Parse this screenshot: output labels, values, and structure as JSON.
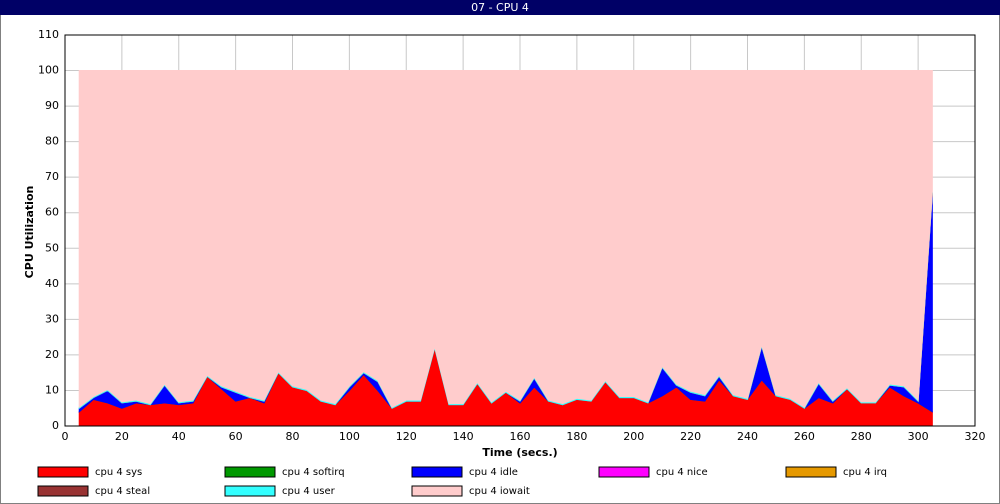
{
  "chart_data": {
    "type": "stacked-area",
    "title": "07 - CPU 4",
    "x_label": "Time (secs.)",
    "y_label": "CPU Utilization",
    "x": [
      5,
      10,
      15,
      20,
      25,
      30,
      35,
      40,
      45,
      50,
      55,
      60,
      65,
      70,
      75,
      80,
      85,
      90,
      95,
      100,
      105,
      110,
      115,
      120,
      125,
      130,
      135,
      140,
      145,
      150,
      155,
      160,
      165,
      170,
      175,
      180,
      185,
      190,
      195,
      200,
      205,
      210,
      215,
      220,
      225,
      230,
      235,
      240,
      245,
      250,
      255,
      260,
      265,
      270,
      275,
      280,
      285,
      290,
      295,
      300,
      305
    ],
    "xlim": [
      0,
      320
    ],
    "xticks": [
      0,
      20,
      40,
      60,
      80,
      100,
      120,
      140,
      160,
      180,
      200,
      220,
      240,
      260,
      280,
      300,
      320
    ],
    "ylim": [
      0,
      110
    ],
    "yticks": [
      0,
      10,
      20,
      30,
      40,
      50,
      60,
      70,
      80,
      90,
      100,
      110
    ],
    "grid": true,
    "series": [
      {
        "name": "cpu 4 sys",
        "color": "#ff0000",
        "values": [
          4,
          7.5,
          6.5,
          5,
          6.5,
          6,
          6.5,
          6,
          6.5,
          14,
          10.5,
          7,
          8,
          6.5,
          15,
          11,
          10,
          7,
          6,
          10,
          14.5,
          10,
          5,
          7,
          7,
          22,
          6,
          6,
          12,
          6.5,
          9.5,
          6.5,
          11,
          7,
          6,
          7.5,
          7,
          12.5,
          8,
          8,
          6.5,
          8.5,
          11,
          7.5,
          7,
          13,
          8.5,
          7.5,
          13,
          8.5,
          7.5,
          5,
          8,
          6.5,
          10.5,
          6.5,
          6.5,
          11,
          8.5,
          6.5,
          4
        ]
      },
      {
        "name": "cpu 4 softirq",
        "color": "#009900",
        "values": [
          0,
          0,
          0,
          0,
          0,
          0,
          0,
          0,
          0,
          0,
          0,
          0,
          0,
          0,
          0,
          0,
          0,
          0,
          0,
          0,
          0,
          0,
          0,
          0,
          0,
          0,
          0,
          0,
          0,
          0,
          0,
          0,
          0,
          0,
          0,
          0,
          0,
          0,
          0,
          0,
          0,
          0,
          0,
          0,
          0,
          0,
          0,
          0,
          0,
          0,
          0,
          0,
          0,
          0,
          0,
          0,
          0,
          0,
          0,
          0,
          0
        ]
      },
      {
        "name": "cpu 4 idle",
        "color": "#0000ff",
        "values": [
          1,
          0.5,
          3.5,
          1.5,
          0.5,
          0,
          5,
          0.5,
          0.5,
          0,
          0.5,
          2.5,
          0,
          0.5,
          0,
          0,
          0,
          0,
          0,
          1,
          0.5,
          2.5,
          0,
          0,
          0,
          0,
          0,
          0,
          0,
          0,
          0,
          0.5,
          2.5,
          0,
          0,
          0,
          0,
          0,
          0,
          0,
          0,
          8,
          0.5,
          2,
          1.5,
          1,
          0,
          0,
          9.5,
          0,
          0,
          0,
          4,
          0.5,
          0,
          0,
          0,
          0.5,
          2.5,
          0.5,
          61.5
        ]
      },
      {
        "name": "cpu 4 nice",
        "color": "#ff00ff",
        "values": [
          0,
          0,
          0,
          0,
          0,
          0,
          0,
          0,
          0,
          0,
          0,
          0,
          0,
          0,
          0,
          0,
          0,
          0,
          0,
          0,
          0,
          0,
          0,
          0,
          0,
          0,
          0,
          0,
          0,
          0,
          0,
          0,
          0,
          0,
          0,
          0,
          0,
          0,
          0,
          0,
          0,
          0,
          0,
          0,
          0,
          0,
          0,
          0,
          0,
          0,
          0,
          0,
          0,
          0,
          0,
          0,
          0,
          0,
          0,
          0,
          0
        ]
      },
      {
        "name": "cpu 4 irq",
        "color": "#e69900",
        "values": [
          0,
          0,
          0,
          0,
          0,
          0,
          0,
          0,
          0,
          0,
          0,
          0,
          0,
          0,
          0,
          0,
          0,
          0,
          0,
          0,
          0,
          0,
          0,
          0,
          0,
          0,
          0,
          0,
          0,
          0,
          0,
          0,
          0,
          0,
          0,
          0,
          0,
          0,
          0,
          0,
          0,
          0,
          0,
          0,
          0,
          0,
          0,
          0,
          0,
          0,
          0,
          0,
          0,
          0,
          0,
          0,
          0,
          0,
          0,
          0,
          0
        ]
      },
      {
        "name": "cpu 4 steal",
        "color": "#993333",
        "values": [
          0,
          0,
          0,
          0,
          0,
          0,
          0,
          0,
          0,
          0,
          0,
          0,
          0,
          0,
          0,
          0,
          0,
          0,
          0,
          0,
          0,
          0,
          0,
          0,
          0,
          0,
          0,
          0,
          0,
          0,
          0,
          0,
          0,
          0,
          0,
          0,
          0,
          0,
          0,
          0,
          0,
          0,
          0,
          0,
          0,
          0,
          0,
          0,
          0,
          0,
          0,
          0,
          0,
          0,
          0,
          0,
          0,
          0,
          0,
          0,
          0
        ]
      },
      {
        "name": "cpu 4 user",
        "color": "#33ffff",
        "values": [
          0.3,
          0.3,
          0.3,
          0.3,
          0.3,
          0.3,
          0.3,
          0.3,
          0.3,
          0.3,
          0.3,
          0.3,
          0.3,
          0.3,
          0.3,
          0.3,
          0.3,
          0.3,
          0.3,
          0.3,
          0.3,
          0.3,
          0.3,
          0.3,
          0.3,
          0.3,
          0.3,
          0.3,
          0.3,
          0.3,
          0.3,
          0.3,
          0.3,
          0.3,
          0.3,
          0.3,
          0.3,
          0.3,
          0.3,
          0.3,
          0.3,
          0.3,
          0.3,
          0.3,
          0.3,
          0.3,
          0.3,
          0.3,
          0.3,
          0.3,
          0.3,
          0.3,
          0.3,
          0.3,
          0.3,
          0.3,
          0.3,
          0.3,
          0.3,
          0.3,
          0.3
        ]
      },
      {
        "name": "cpu 4 iowait",
        "color": "#ffcccc",
        "values": [
          94.7,
          91.7,
          89.7,
          93.2,
          92.7,
          93.7,
          88.2,
          93.2,
          92.7,
          85.7,
          88.7,
          90.2,
          91.7,
          92.7,
          84.7,
          88.7,
          89.7,
          92.7,
          93.7,
          88.7,
          84.7,
          87.2,
          94.7,
          92.7,
          92.7,
          77.7,
          93.7,
          93.7,
          87.7,
          93.2,
          90.2,
          92.7,
          86.2,
          92.7,
          93.7,
          92.2,
          92.7,
          87.2,
          91.7,
          91.7,
          93.2,
          83.2,
          88.2,
          90.2,
          91.2,
          85.7,
          91.2,
          92.2,
          77.2,
          91.2,
          92.2,
          94.7,
          87.7,
          92.7,
          89.2,
          93.2,
          93.2,
          88.2,
          88.7,
          92.7,
          34.2
        ]
      }
    ]
  }
}
